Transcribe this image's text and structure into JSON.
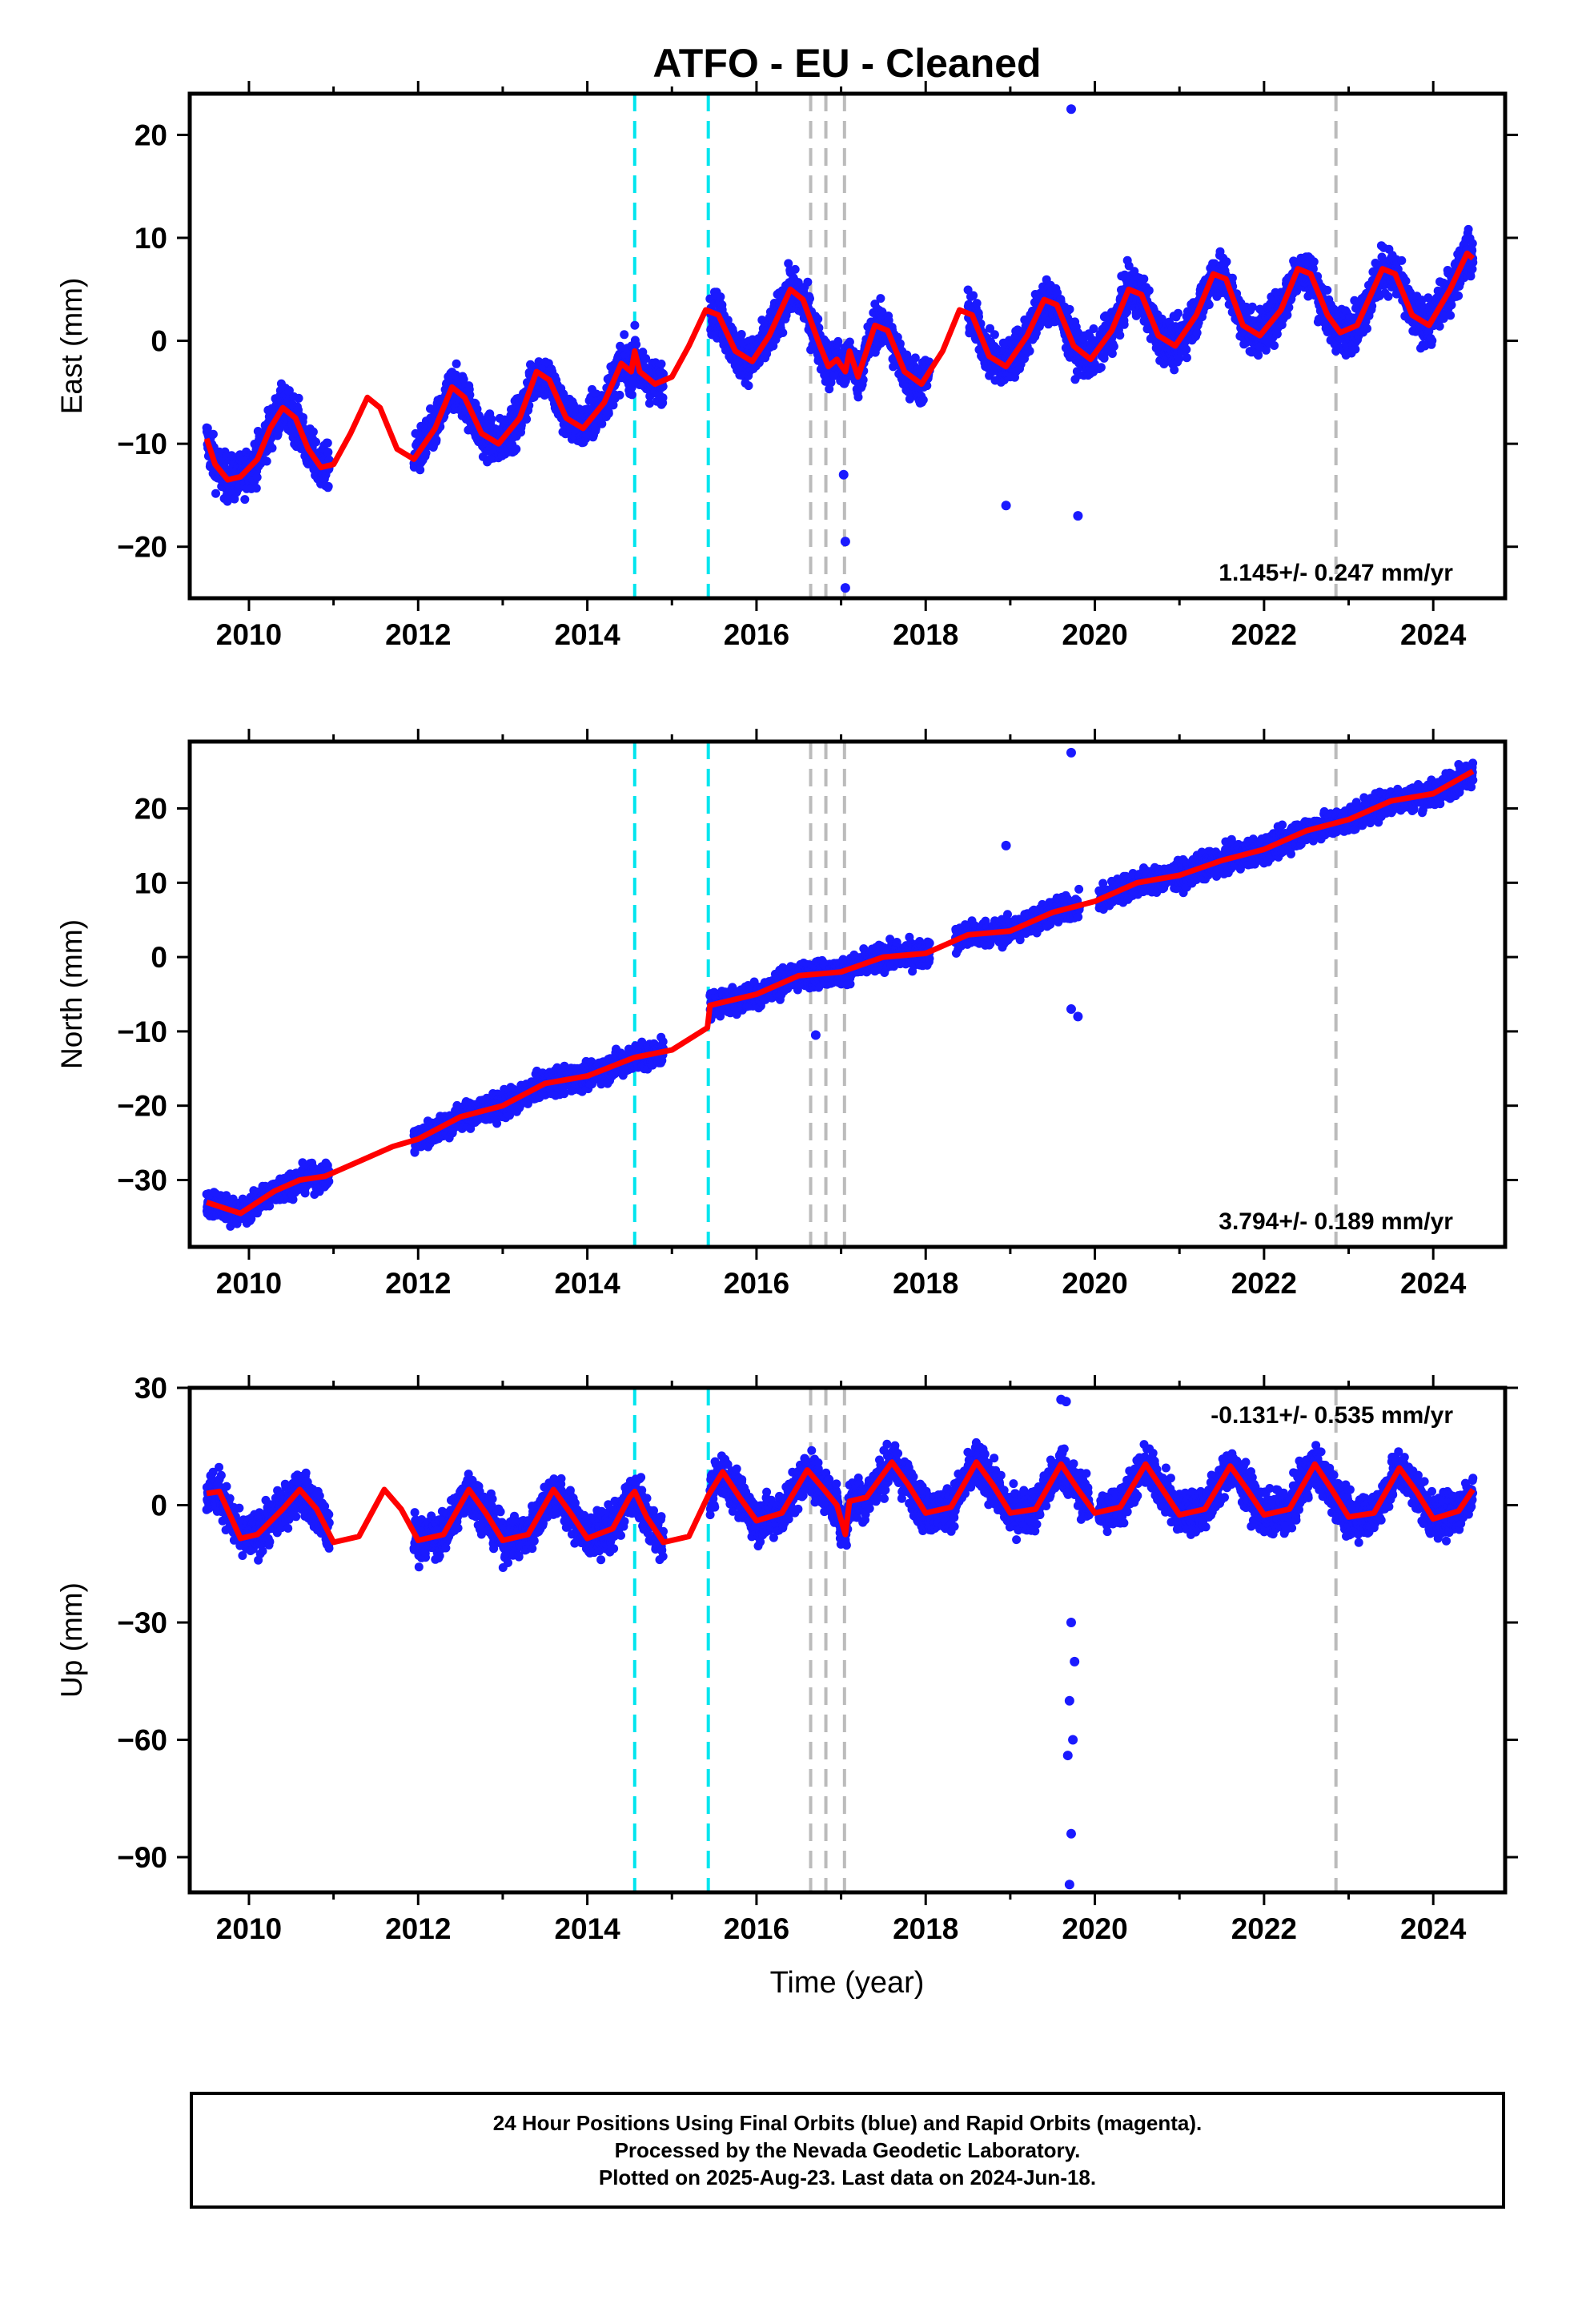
{
  "title": "ATFO  - EU - Cleaned",
  "xlabel": "Time (year)",
  "footer": [
    "24 Hour Positions Using Final Orbits (blue) and Rapid Orbits (magenta).",
    "Processed by the Nevada Geodetic Laboratory.",
    "Plotted on 2025-Aug-23. Last data on 2024-Jun-18."
  ],
  "colors": {
    "points": "#1a1aff",
    "model": "#ff0000",
    "offset_cyan": "#00e5ee",
    "offset_gray": "#bbbbbb",
    "frame": "#000000"
  },
  "chart_data": [
    {
      "type": "scatter",
      "component": "East",
      "ylabel": "East (mm)",
      "rate_label": "1.145+/- 0.247 mm/yr",
      "rate_position": "bottom-right",
      "xlim": [
        2009.3,
        2024.85
      ],
      "ylim": [
        -25,
        24
      ],
      "yticks": [
        -20,
        -10,
        0,
        10,
        20
      ],
      "xticks": [
        2010,
        2012,
        2014,
        2016,
        2018,
        2020,
        2022,
        2024
      ],
      "offsets_cyan": [
        2014.56,
        2015.43
      ],
      "offsets_gray": [
        2016.64,
        2016.82,
        2017.04,
        2022.85
      ],
      "model_points": [
        [
          2009.5,
          -9.5
        ],
        [
          2009.6,
          -12.0
        ],
        [
          2009.75,
          -13.5
        ],
        [
          2009.9,
          -13.2
        ],
        [
          2010.1,
          -11.5
        ],
        [
          2010.25,
          -8.5
        ],
        [
          2010.4,
          -6.5
        ],
        [
          2010.55,
          -7.5
        ],
        [
          2010.7,
          -10.5
        ],
        [
          2010.85,
          -12.3
        ],
        [
          2011.0,
          -12.0
        ],
        [
          2011.2,
          -9.0
        ],
        [
          2011.4,
          -5.5
        ],
        [
          2011.55,
          -6.5
        ],
        [
          2011.75,
          -10.5
        ],
        [
          2011.95,
          -11.5
        ],
        [
          2012.2,
          -8.5
        ],
        [
          2012.4,
          -4.5
        ],
        [
          2012.55,
          -5.5
        ],
        [
          2012.75,
          -9.0
        ],
        [
          2012.95,
          -10.0
        ],
        [
          2013.2,
          -7.5
        ],
        [
          2013.4,
          -3.0
        ],
        [
          2013.55,
          -3.8
        ],
        [
          2013.75,
          -7.5
        ],
        [
          2013.95,
          -8.5
        ],
        [
          2014.2,
          -6.0
        ],
        [
          2014.4,
          -2.2
        ],
        [
          2014.52,
          -3.0
        ],
        [
          2014.56,
          -1.0
        ],
        [
          2014.62,
          -3.0
        ],
        [
          2014.8,
          -4.2
        ],
        [
          2015.0,
          -3.5
        ],
        [
          2015.2,
          -0.5
        ],
        [
          2015.4,
          3.0
        ],
        [
          2015.55,
          2.5
        ],
        [
          2015.75,
          -1.0
        ],
        [
          2015.95,
          -2.0
        ],
        [
          2016.15,
          0.5
        ],
        [
          2016.4,
          5.0
        ],
        [
          2016.55,
          4.0
        ],
        [
          2016.75,
          -0.5
        ],
        [
          2016.85,
          -2.5
        ],
        [
          2016.95,
          -1.8
        ],
        [
          2017.05,
          -3.0
        ],
        [
          2017.1,
          -1.0
        ],
        [
          2017.2,
          -3.5
        ],
        [
          2017.4,
          1.5
        ],
        [
          2017.55,
          1.0
        ],
        [
          2017.75,
          -3.0
        ],
        [
          2017.95,
          -4.2
        ],
        [
          2018.2,
          -1.0
        ],
        [
          2018.4,
          3.0
        ],
        [
          2018.55,
          2.5
        ],
        [
          2018.75,
          -1.5
        ],
        [
          2018.95,
          -2.5
        ],
        [
          2019.2,
          0.5
        ],
        [
          2019.4,
          4.0
        ],
        [
          2019.55,
          3.5
        ],
        [
          2019.75,
          -0.5
        ],
        [
          2019.95,
          -1.8
        ],
        [
          2020.2,
          1.0
        ],
        [
          2020.4,
          5.0
        ],
        [
          2020.55,
          4.5
        ],
        [
          2020.75,
          0.5
        ],
        [
          2020.95,
          -0.5
        ],
        [
          2021.2,
          2.5
        ],
        [
          2021.4,
          6.5
        ],
        [
          2021.55,
          6.0
        ],
        [
          2021.75,
          1.5
        ],
        [
          2021.95,
          0.5
        ],
        [
          2022.2,
          3.0
        ],
        [
          2022.4,
          7.0
        ],
        [
          2022.55,
          6.5
        ],
        [
          2022.75,
          2.5
        ],
        [
          2022.9,
          0.8
        ],
        [
          2023.1,
          1.5
        ],
        [
          2023.4,
          7.0
        ],
        [
          2023.55,
          6.5
        ],
        [
          2023.75,
          2.5
        ],
        [
          2023.95,
          1.5
        ],
        [
          2024.2,
          5.0
        ],
        [
          2024.4,
          8.5
        ],
        [
          2024.47,
          8.0
        ]
      ],
      "point_segments": [
        [
          2009.5,
          2010.95
        ],
        [
          2011.95,
          2014.9
        ],
        [
          2015.45,
          2018.05
        ],
        [
          2018.5,
          2020.0
        ],
        [
          2020.05,
          2024.47
        ]
      ],
      "notable_points": [
        [
          2019.72,
          22.5
        ],
        [
          2017.05,
          -24
        ],
        [
          2017.05,
          -19.5
        ],
        [
          2017.03,
          -13
        ],
        [
          2019.8,
          -17
        ],
        [
          2018.95,
          -16
        ]
      ]
    },
    {
      "type": "scatter",
      "component": "North",
      "ylabel": "North (mm)",
      "rate_label": "3.794+/- 0.189 mm/yr",
      "rate_position": "bottom-right",
      "xlim": [
        2009.3,
        2024.85
      ],
      "ylim": [
        -39,
        29
      ],
      "yticks": [
        -30,
        -20,
        -10,
        0,
        10,
        20
      ],
      "xticks": [
        2010,
        2012,
        2014,
        2016,
        2018,
        2020,
        2022,
        2024
      ],
      "offsets_cyan": [
        2014.56,
        2015.43
      ],
      "offsets_gray": [
        2016.64,
        2016.82,
        2017.04,
        2022.85
      ],
      "model_points": [
        [
          2009.5,
          -33.0
        ],
        [
          2009.9,
          -34.5
        ],
        [
          2010.3,
          -31.5
        ],
        [
          2010.6,
          -30.0
        ],
        [
          2010.9,
          -29.5
        ],
        [
          2011.3,
          -27.5
        ],
        [
          2011.7,
          -25.5
        ],
        [
          2012.0,
          -24.5
        ],
        [
          2012.5,
          -21.5
        ],
        [
          2013.0,
          -20.0
        ],
        [
          2013.5,
          -17.0
        ],
        [
          2014.0,
          -16.0
        ],
        [
          2014.56,
          -13.5
        ],
        [
          2015.0,
          -12.5
        ],
        [
          2015.42,
          -9.5
        ],
        [
          2015.45,
          -6.5
        ],
        [
          2016.0,
          -5.0
        ],
        [
          2016.5,
          -2.5
        ],
        [
          2017.0,
          -2.0
        ],
        [
          2017.5,
          0.0
        ],
        [
          2018.0,
          0.5
        ],
        [
          2018.5,
          3.0
        ],
        [
          2019.0,
          3.5
        ],
        [
          2019.5,
          6.0
        ],
        [
          2020.0,
          7.5
        ],
        [
          2020.5,
          10.0
        ],
        [
          2021.0,
          11.0
        ],
        [
          2021.5,
          13.0
        ],
        [
          2022.0,
          14.5
        ],
        [
          2022.5,
          17.0
        ],
        [
          2023.0,
          18.5
        ],
        [
          2023.5,
          21.0
        ],
        [
          2024.0,
          22.0
        ],
        [
          2024.47,
          25.0
        ]
      ],
      "point_segments": [
        [
          2009.5,
          2010.95
        ],
        [
          2011.95,
          2014.9
        ],
        [
          2015.45,
          2018.05
        ],
        [
          2018.35,
          2019.82
        ],
        [
          2020.05,
          2024.47
        ]
      ],
      "notable_points": [
        [
          2019.72,
          27.5
        ],
        [
          2019.72,
          -7.0
        ],
        [
          2019.8,
          -8.0
        ],
        [
          2018.95,
          15.0
        ],
        [
          2016.7,
          -10.5
        ]
      ]
    },
    {
      "type": "scatter",
      "component": "Up",
      "ylabel": "Up (mm)",
      "rate_label": "-0.131+/- 0.535 mm/yr",
      "rate_position": "top-right",
      "xlim": [
        2009.3,
        2024.85
      ],
      "ylim": [
        -99,
        30
      ],
      "yticks": [
        -90,
        -60,
        -30,
        0,
        30
      ],
      "xticks": [
        2010,
        2012,
        2014,
        2016,
        2018,
        2020,
        2022,
        2024
      ],
      "offsets_cyan": [
        2014.56,
        2015.43
      ],
      "offsets_gray": [
        2016.64,
        2016.82,
        2017.04,
        2022.85
      ],
      "model_points": [
        [
          2009.5,
          3.0
        ],
        [
          2009.65,
          3.5
        ],
        [
          2009.9,
          -8.5
        ],
        [
          2010.1,
          -7.5
        ],
        [
          2010.4,
          -1.0
        ],
        [
          2010.6,
          4.0
        ],
        [
          2010.8,
          -1.0
        ],
        [
          2011.0,
          -9.5
        ],
        [
          2011.3,
          -8.0
        ],
        [
          2011.6,
          4.0
        ],
        [
          2011.8,
          -1.0
        ],
        [
          2012.0,
          -9.0
        ],
        [
          2012.3,
          -7.5
        ],
        [
          2012.6,
          4.0
        ],
        [
          2012.8,
          -2.0
        ],
        [
          2013.0,
          -9.0
        ],
        [
          2013.3,
          -7.5
        ],
        [
          2013.6,
          4.0
        ],
        [
          2013.8,
          -2.0
        ],
        [
          2014.0,
          -8.5
        ],
        [
          2014.3,
          -6.0
        ],
        [
          2014.5,
          2.0
        ],
        [
          2014.56,
          3.5
        ],
        [
          2014.7,
          -3.0
        ],
        [
          2014.9,
          -9.5
        ],
        [
          2015.2,
          -8.0
        ],
        [
          2015.43,
          2.5
        ],
        [
          2015.6,
          8.5
        ],
        [
          2015.8,
          2.0
        ],
        [
          2016.0,
          -4.0
        ],
        [
          2016.3,
          -2.0
        ],
        [
          2016.6,
          9.0
        ],
        [
          2016.8,
          4.0
        ],
        [
          2016.95,
          0.0
        ],
        [
          2017.05,
          -7.5
        ],
        [
          2017.1,
          1.0
        ],
        [
          2017.3,
          2.0
        ],
        [
          2017.6,
          11.0
        ],
        [
          2017.8,
          5.0
        ],
        [
          2018.0,
          -2.0
        ],
        [
          2018.3,
          -0.5
        ],
        [
          2018.6,
          11.0
        ],
        [
          2018.8,
          5.0
        ],
        [
          2019.0,
          -2.0
        ],
        [
          2019.3,
          -1.0
        ],
        [
          2019.6,
          10.5
        ],
        [
          2019.8,
          4.0
        ],
        [
          2020.0,
          -2.0
        ],
        [
          2020.3,
          -0.5
        ],
        [
          2020.6,
          10.5
        ],
        [
          2020.8,
          4.0
        ],
        [
          2021.0,
          -2.5
        ],
        [
          2021.3,
          -1.0
        ],
        [
          2021.6,
          10.0
        ],
        [
          2021.8,
          4.0
        ],
        [
          2022.0,
          -2.5
        ],
        [
          2022.3,
          -1.0
        ],
        [
          2022.6,
          10.5
        ],
        [
          2022.8,
          4.0
        ],
        [
          2023.0,
          -3.0
        ],
        [
          2023.3,
          -2.0
        ],
        [
          2023.6,
          9.5
        ],
        [
          2023.8,
          3.5
        ],
        [
          2024.0,
          -3.5
        ],
        [
          2024.3,
          -1.5
        ],
        [
          2024.47,
          4.0
        ]
      ],
      "point_segments": [
        [
          2009.5,
          2010.95
        ],
        [
          2011.95,
          2014.9
        ],
        [
          2015.45,
          2019.95
        ],
        [
          2020.05,
          2024.47
        ]
      ],
      "notable_points": [
        [
          2019.6,
          27.0
        ],
        [
          2019.66,
          26.5
        ],
        [
          2019.68,
          -64
        ],
        [
          2019.72,
          -84
        ],
        [
          2019.7,
          -97
        ],
        [
          2019.74,
          -60
        ],
        [
          2019.7,
          -50
        ],
        [
          2019.76,
          -40
        ],
        [
          2019.72,
          -30
        ]
      ]
    }
  ]
}
